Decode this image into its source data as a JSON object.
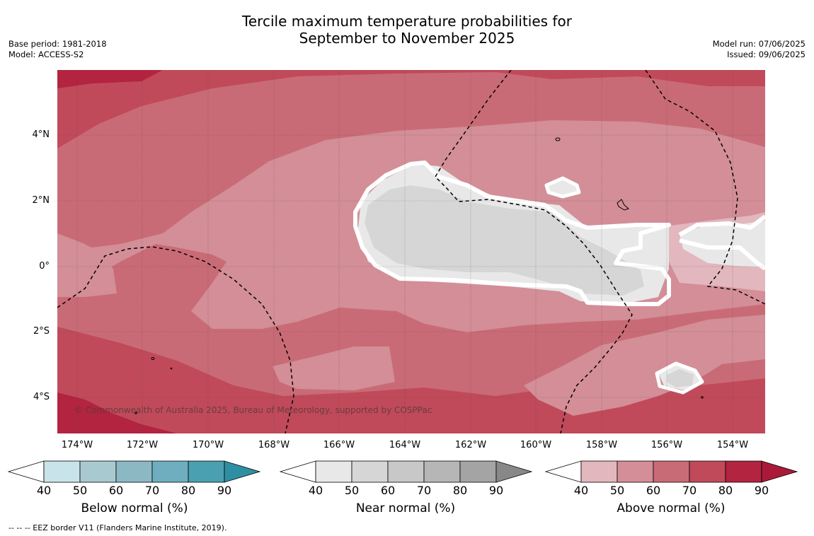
{
  "header": {
    "title_line1": "Tercile maximum temperature probabilities for",
    "title_line2": "September to November 2025",
    "base_period": "Base period: 1981-2018",
    "model": "Model: ACCESS-S2",
    "model_run": "Model run: 07/06/2025",
    "issued": "Issued: 09/06/2025"
  },
  "map": {
    "lat_labels": [
      "4°N",
      "2°N",
      "0°",
      "2°S",
      "4°S"
    ],
    "lon_labels": [
      "174°W",
      "172°W",
      "170°W",
      "168°W",
      "166°W",
      "164°W",
      "162°W",
      "160°W",
      "158°W",
      "156°W",
      "154°W"
    ],
    "credit": "© Commonwealth of Australia 2025, Bureau of Meteorology, supported by COSPPac",
    "colors": {
      "above_50": "#d38e97",
      "above_60": "#c96b76",
      "above_70": "#c04a5a",
      "above_80": "#b22440",
      "above_40": "#e2b7bd",
      "near_40": "#e8e8e8",
      "near_50": "#d6d6d6"
    }
  },
  "colorbars": {
    "ticks": [
      "40",
      "50",
      "60",
      "70",
      "80",
      "90"
    ],
    "below": {
      "title": "Below normal (%)",
      "colors": [
        "#c9e3ea",
        "#a8c9cf",
        "#8cb8c4",
        "#6eaebe",
        "#4aa0b0",
        "#2e8fa3"
      ]
    },
    "near": {
      "title": "Near normal (%)",
      "colors": [
        "#e8e8e8",
        "#d6d6d6",
        "#c8c8c8",
        "#b6b6b6",
        "#a4a4a4",
        "#888888"
      ]
    },
    "above": {
      "title": "Above normal (%)",
      "colors": [
        "#e2b7bd",
        "#d38e97",
        "#c96b76",
        "#c04a5a",
        "#b22440",
        "#aa1a38"
      ]
    }
  },
  "footer": {
    "legend": "--  --  -- EEZ border V11 (Flanders Marine Institute, 2019)."
  }
}
